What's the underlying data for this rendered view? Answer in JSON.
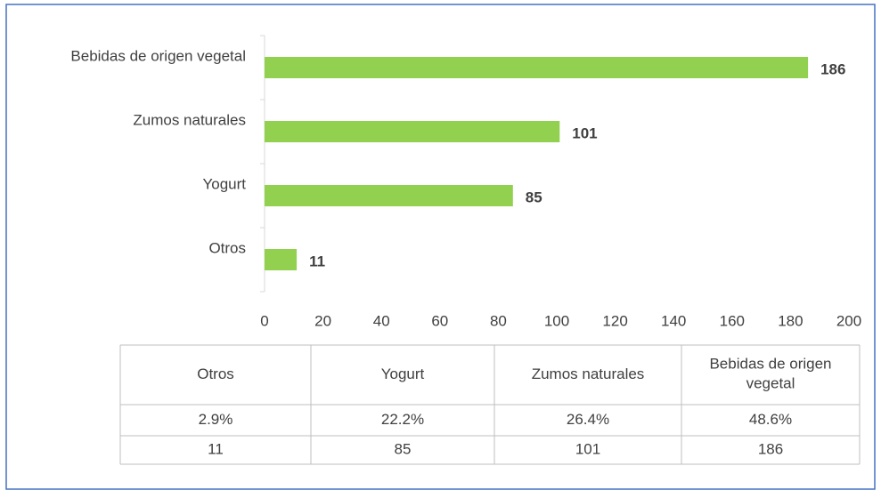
{
  "chart_data": {
    "type": "hbar",
    "categories": [
      "Bebidas de origen vegetal",
      "Zumos naturales",
      "Yogurt",
      "Otros"
    ],
    "values": [
      186,
      101,
      85,
      11
    ],
    "color": "#92d050",
    "xlim": [
      0,
      200
    ],
    "xticks": [
      0,
      20,
      40,
      60,
      80,
      100,
      120,
      140,
      160,
      180,
      200
    ],
    "grid": false,
    "table": {
      "columns": [
        "Otros",
        "Yogurt",
        "Zumos naturales",
        "Bebidas de origen vegetal"
      ],
      "rows": [
        [
          "2.9%",
          "22.2%",
          "26.4%",
          "48.6%"
        ],
        [
          "11",
          "85",
          "101",
          "186"
        ]
      ]
    }
  }
}
